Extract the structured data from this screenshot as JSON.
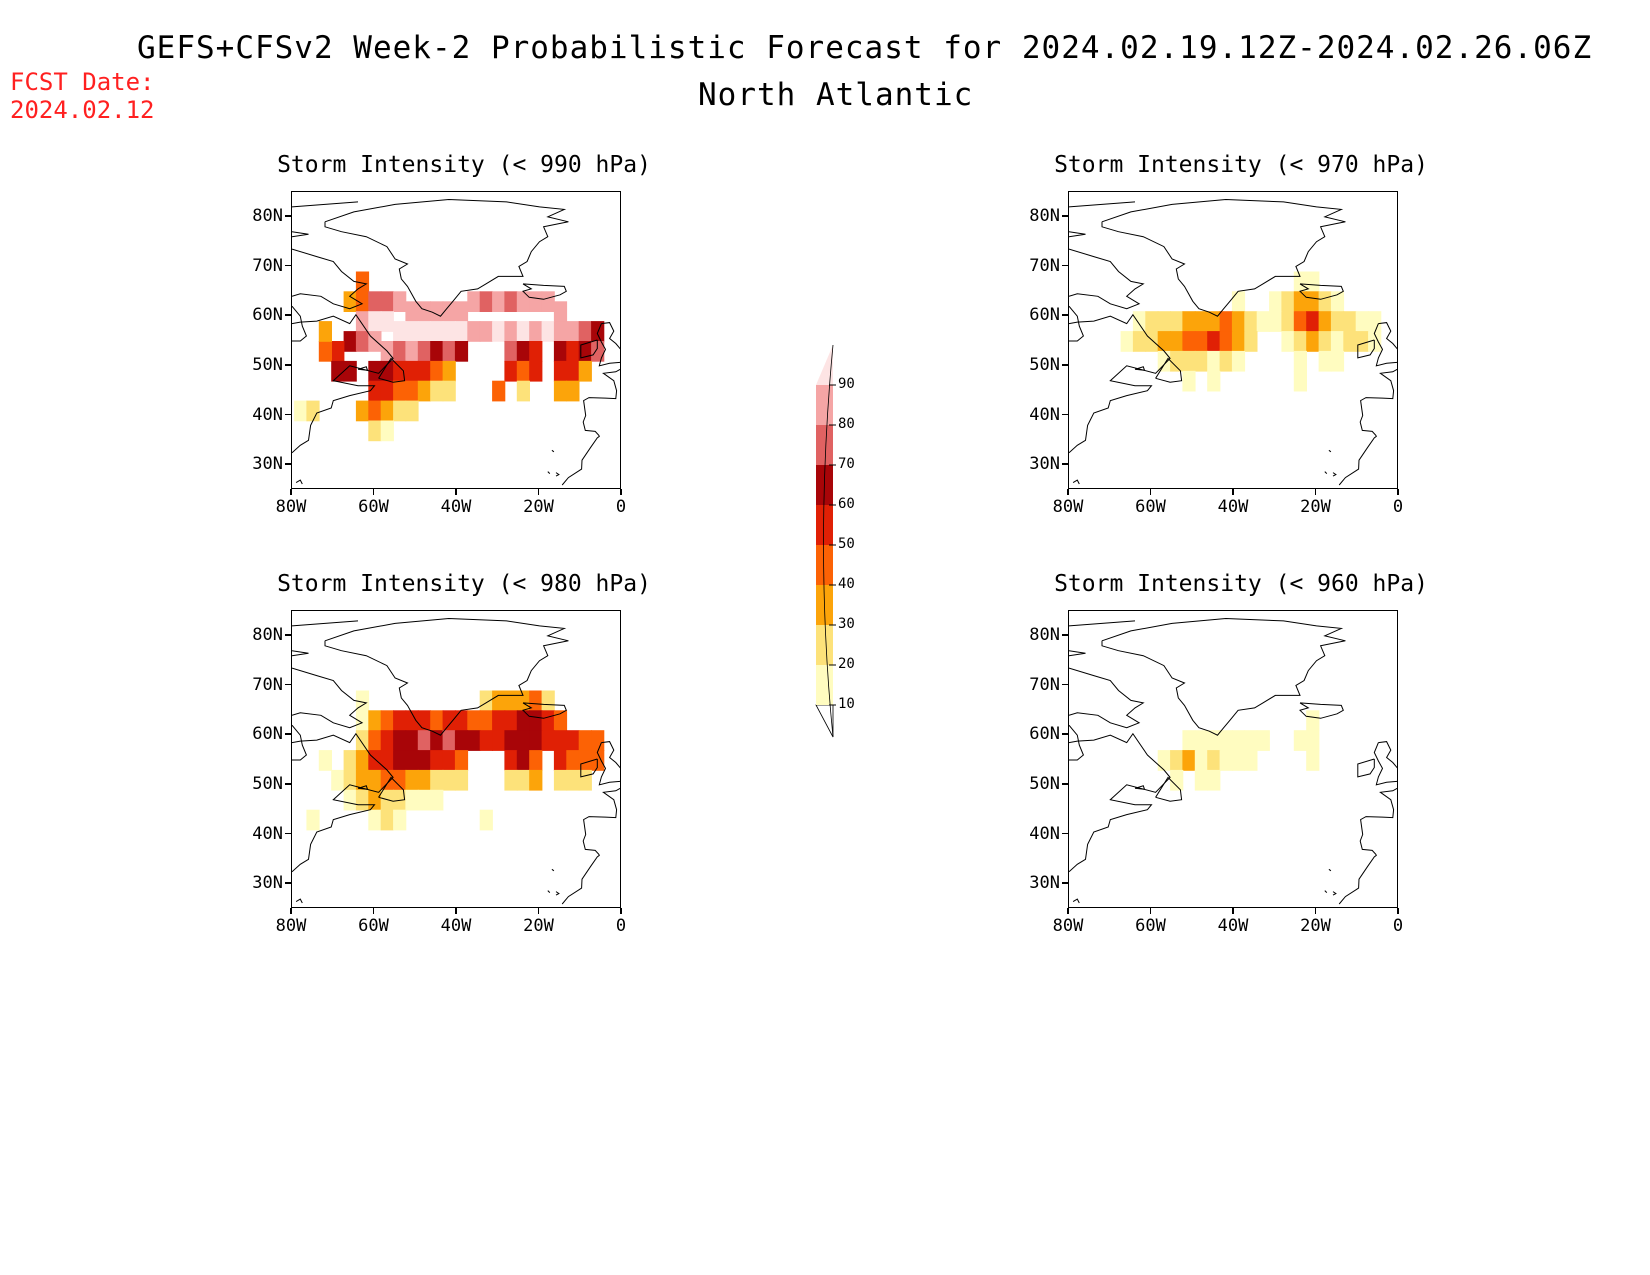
{
  "header": {
    "title": "GEFS+CFSv2 Week-2 Probabilistic Forecast for 2024.02.19.12Z-2024.02.26.06Z",
    "region": "North Atlantic",
    "fcst_label": "FCST Date:",
    "fcst_date": "2024.02.12"
  },
  "axes": {
    "lat_labels": [
      "80N",
      "70N",
      "60N",
      "50N",
      "40N",
      "30N"
    ],
    "lon_labels": [
      "80W",
      "60W",
      "40W",
      "20W",
      "0"
    ]
  },
  "colorbar": {
    "levels": [
      "10",
      "20",
      "30",
      "40",
      "50",
      "60",
      "70",
      "80",
      "90"
    ],
    "colors": [
      "#fffcc0",
      "#fde27a",
      "#fca40a",
      "#fc6205",
      "#e02005",
      "#a80508",
      "#e06262",
      "#f5a5a5",
      "#fde4e4"
    ]
  },
  "panels": [
    {
      "id": "p990",
      "title": "Storm Intensity (< 990 hPa)",
      "cells": [
        [
          -63,
          67,
          4
        ],
        [
          -66,
          63,
          3
        ],
        [
          -63,
          63,
          4
        ],
        [
          -60,
          63,
          7
        ],
        [
          -57,
          63,
          7
        ],
        [
          -54,
          63,
          8
        ],
        [
          -51,
          61,
          8
        ],
        [
          -48,
          61,
          8
        ],
        [
          -45,
          61,
          8
        ],
        [
          -42,
          61,
          8
        ],
        [
          -39,
          61,
          8
        ],
        [
          -36,
          63,
          8
        ],
        [
          -33,
          63,
          7
        ],
        [
          -30,
          63,
          8
        ],
        [
          -27,
          63,
          7
        ],
        [
          -24,
          63,
          8
        ],
        [
          -21,
          63,
          8
        ],
        [
          -18,
          63,
          8
        ],
        [
          -15,
          61,
          8
        ],
        [
          -63,
          59,
          8
        ],
        [
          -60,
          59,
          9
        ],
        [
          -57,
          59,
          9
        ],
        [
          -54,
          57,
          9
        ],
        [
          -51,
          57,
          9
        ],
        [
          -48,
          57,
          9
        ],
        [
          -45,
          57,
          9
        ],
        [
          -42,
          57,
          9
        ],
        [
          -39,
          57,
          9
        ],
        [
          -36,
          57,
          8
        ],
        [
          -33,
          57,
          8
        ],
        [
          -30,
          57,
          9
        ],
        [
          -27,
          57,
          8
        ],
        [
          -24,
          57,
          9
        ],
        [
          -21,
          57,
          8
        ],
        [
          -18,
          57,
          9
        ],
        [
          -15,
          57,
          8
        ],
        [
          -12,
          57,
          8
        ],
        [
          -9,
          57,
          7
        ],
        [
          -6,
          57,
          6
        ],
        [
          -66,
          55,
          6
        ],
        [
          -63,
          55,
          7
        ],
        [
          -60,
          55,
          8
        ],
        [
          -57,
          53,
          8
        ],
        [
          -54,
          53,
          7
        ],
        [
          -51,
          53,
          8
        ],
        [
          -48,
          53,
          7
        ],
        [
          -45,
          53,
          6
        ],
        [
          -42,
          53,
          7
        ],
        [
          -39,
          53,
          6
        ],
        [
          -27,
          53,
          7
        ],
        [
          -24,
          53,
          6
        ],
        [
          -21,
          53,
          5
        ],
        [
          -15,
          53,
          6
        ],
        [
          -12,
          53,
          5
        ],
        [
          -9,
          53,
          6
        ],
        [
          -6,
          53,
          7
        ],
        [
          -69,
          53,
          5
        ],
        [
          -72,
          53,
          4
        ],
        [
          -72,
          57,
          3
        ],
        [
          -69,
          49,
          6
        ],
        [
          -66,
          49,
          6
        ],
        [
          -60,
          49,
          6
        ],
        [
          -57,
          49,
          6
        ],
        [
          -54,
          49,
          5
        ],
        [
          -51,
          49,
          5
        ],
        [
          -48,
          49,
          5
        ],
        [
          -45,
          49,
          4
        ],
        [
          -42,
          49,
          3
        ],
        [
          -27,
          49,
          5
        ],
        [
          -24,
          49,
          4
        ],
        [
          -21,
          49,
          5
        ],
        [
          -15,
          49,
          5
        ],
        [
          -12,
          49,
          5
        ],
        [
          -9,
          49,
          3
        ],
        [
          -60,
          45,
          5
        ],
        [
          -57,
          45,
          5
        ],
        [
          -54,
          45,
          4
        ],
        [
          -51,
          45,
          4
        ],
        [
          -48,
          45,
          3
        ],
        [
          -45,
          45,
          2
        ],
        [
          -42,
          45,
          2
        ],
        [
          -30,
          45,
          4
        ],
        [
          -24,
          45,
          2
        ],
        [
          -15,
          45,
          3
        ],
        [
          -12,
          45,
          3
        ],
        [
          -63,
          41,
          3
        ],
        [
          -60,
          41,
          4
        ],
        [
          -57,
          41,
          3
        ],
        [
          -54,
          41,
          2
        ],
        [
          -51,
          41,
          2
        ],
        [
          -78,
          41,
          1
        ],
        [
          -75,
          41,
          2
        ],
        [
          -60,
          37,
          2
        ],
        [
          -57,
          37,
          1
        ]
      ]
    },
    {
      "id": "p970",
      "title": "Storm Intensity (< 970 hPa)",
      "cells": [
        [
          -24,
          67,
          1
        ],
        [
          -21,
          67,
          1
        ],
        [
          -39,
          63,
          1
        ],
        [
          -30,
          63,
          1
        ],
        [
          -27,
          63,
          2
        ],
        [
          -24,
          63,
          3
        ],
        [
          -21,
          63,
          3
        ],
        [
          -18,
          63,
          2
        ],
        [
          -15,
          63,
          1
        ],
        [
          -63,
          59,
          1
        ],
        [
          -60,
          59,
          2
        ],
        [
          -57,
          59,
          2
        ],
        [
          -54,
          59,
          2
        ],
        [
          -51,
          59,
          3
        ],
        [
          -48,
          59,
          3
        ],
        [
          -45,
          59,
          3
        ],
        [
          -42,
          59,
          4
        ],
        [
          -39,
          59,
          3
        ],
        [
          -36,
          59,
          2
        ],
        [
          -33,
          59,
          1
        ],
        [
          -30,
          59,
          1
        ],
        [
          -27,
          59,
          2
        ],
        [
          -24,
          59,
          4
        ],
        [
          -21,
          59,
          5
        ],
        [
          -18,
          59,
          3
        ],
        [
          -15,
          59,
          2
        ],
        [
          -12,
          59,
          2
        ],
        [
          -9,
          59,
          1
        ],
        [
          -6,
          59,
          1
        ],
        [
          -66,
          55,
          1
        ],
        [
          -63,
          55,
          2
        ],
        [
          -60,
          55,
          2
        ],
        [
          -57,
          55,
          3
        ],
        [
          -54,
          55,
          3
        ],
        [
          -51,
          55,
          4
        ],
        [
          -48,
          55,
          4
        ],
        [
          -45,
          55,
          5
        ],
        [
          -42,
          55,
          4
        ],
        [
          -39,
          55,
          3
        ],
        [
          -36,
          55,
          2
        ],
        [
          -27,
          55,
          1
        ],
        [
          -24,
          55,
          2
        ],
        [
          -21,
          55,
          3
        ],
        [
          -18,
          55,
          2
        ],
        [
          -15,
          55,
          1
        ],
        [
          -12,
          55,
          2
        ],
        [
          -9,
          55,
          2
        ],
        [
          -6,
          55,
          1
        ],
        [
          -57,
          51,
          1
        ],
        [
          -54,
          51,
          2
        ],
        [
          -51,
          51,
          2
        ],
        [
          -48,
          51,
          2
        ],
        [
          -45,
          51,
          1
        ],
        [
          -42,
          51,
          2
        ],
        [
          -39,
          51,
          1
        ],
        [
          -24,
          51,
          1
        ],
        [
          -18,
          51,
          1
        ],
        [
          -15,
          51,
          1
        ],
        [
          -51,
          47,
          1
        ],
        [
          -45,
          47,
          1
        ],
        [
          -24,
          47,
          1
        ]
      ]
    },
    {
      "id": "p980",
      "title": "Storm Intensity (< 980 hPa)",
      "cells": [
        [
          -63,
          67,
          1
        ],
        [
          -33,
          67,
          2
        ],
        [
          -30,
          67,
          3
        ],
        [
          -27,
          67,
          3
        ],
        [
          -24,
          67,
          3
        ],
        [
          -21,
          67,
          4
        ],
        [
          -18,
          67,
          2
        ],
        [
          -63,
          63,
          1
        ],
        [
          -60,
          63,
          3
        ],
        [
          -57,
          63,
          4
        ],
        [
          -54,
          63,
          5
        ],
        [
          -51,
          63,
          5
        ],
        [
          -48,
          63,
          5
        ],
        [
          -45,
          63,
          4
        ],
        [
          -42,
          63,
          5
        ],
        [
          -39,
          63,
          5
        ],
        [
          -36,
          63,
          4
        ],
        [
          -33,
          63,
          4
        ],
        [
          -30,
          63,
          5
        ],
        [
          -27,
          63,
          5
        ],
        [
          -24,
          63,
          6
        ],
        [
          -21,
          63,
          6
        ],
        [
          -18,
          63,
          5
        ],
        [
          -15,
          63,
          4
        ],
        [
          -63,
          59,
          2
        ],
        [
          -60,
          59,
          4
        ],
        [
          -57,
          59,
          5
        ],
        [
          -54,
          59,
          6
        ],
        [
          -51,
          59,
          6
        ],
        [
          -48,
          59,
          7
        ],
        [
          -45,
          59,
          6
        ],
        [
          -42,
          59,
          7
        ],
        [
          -39,
          59,
          6
        ],
        [
          -36,
          59,
          6
        ],
        [
          -33,
          59,
          5
        ],
        [
          -30,
          59,
          5
        ],
        [
          -27,
          59,
          6
        ],
        [
          -24,
          59,
          6
        ],
        [
          -21,
          59,
          6
        ],
        [
          -18,
          59,
          5
        ],
        [
          -15,
          59,
          5
        ],
        [
          -12,
          59,
          5
        ],
        [
          -9,
          59,
          4
        ],
        [
          -6,
          59,
          4
        ],
        [
          -66,
          55,
          2
        ],
        [
          -63,
          55,
          3
        ],
        [
          -60,
          55,
          5
        ],
        [
          -57,
          55,
          5
        ],
        [
          -54,
          55,
          6
        ],
        [
          -51,
          55,
          6
        ],
        [
          -48,
          55,
          6
        ],
        [
          -45,
          55,
          5
        ],
        [
          -42,
          55,
          5
        ],
        [
          -39,
          55,
          4
        ],
        [
          -27,
          55,
          5
        ],
        [
          -24,
          55,
          6
        ],
        [
          -21,
          55,
          4
        ],
        [
          -15,
          55,
          5
        ],
        [
          -12,
          55,
          4
        ],
        [
          -9,
          55,
          4
        ],
        [
          -6,
          55,
          4
        ],
        [
          -72,
          55,
          1
        ],
        [
          -69,
          51,
          1
        ],
        [
          -66,
          51,
          2
        ],
        [
          -63,
          51,
          3
        ],
        [
          -60,
          51,
          3
        ],
        [
          -57,
          51,
          4
        ],
        [
          -54,
          51,
          4
        ],
        [
          -51,
          51,
          3
        ],
        [
          -48,
          51,
          3
        ],
        [
          -45,
          51,
          2
        ],
        [
          -42,
          51,
          2
        ],
        [
          -39,
          51,
          2
        ],
        [
          -27,
          51,
          2
        ],
        [
          -24,
          51,
          2
        ],
        [
          -21,
          51,
          3
        ],
        [
          -15,
          51,
          2
        ],
        [
          -12,
          51,
          2
        ],
        [
          -9,
          51,
          2
        ],
        [
          -66,
          47,
          1
        ],
        [
          -63,
          47,
          2
        ],
        [
          -60,
          47,
          3
        ],
        [
          -57,
          47,
          2
        ],
        [
          -54,
          47,
          2
        ],
        [
          -51,
          47,
          1
        ],
        [
          -48,
          47,
          1
        ],
        [
          -45,
          47,
          1
        ],
        [
          -60,
          43,
          1
        ],
        [
          -57,
          43,
          2
        ],
        [
          -54,
          43,
          1
        ],
        [
          -75,
          43,
          1
        ],
        [
          -33,
          43,
          1
        ]
      ]
    },
    {
      "id": "p960",
      "title": "Storm Intensity (< 960 hPa)",
      "cells": [
        [
          -21,
          63,
          1
        ],
        [
          -51,
          59,
          1
        ],
        [
          -48,
          59,
          1
        ],
        [
          -45,
          59,
          1
        ],
        [
          -42,
          59,
          1
        ],
        [
          -39,
          59,
          1
        ],
        [
          -36,
          59,
          1
        ],
        [
          -33,
          59,
          1
        ],
        [
          -24,
          59,
          1
        ],
        [
          -21,
          59,
          1
        ],
        [
          -57,
          55,
          1
        ],
        [
          -54,
          55,
          2
        ],
        [
          -51,
          55,
          3
        ],
        [
          -48,
          55,
          1
        ],
        [
          -45,
          55,
          2
        ],
        [
          -42,
          55,
          1
        ],
        [
          -39,
          55,
          1
        ],
        [
          -36,
          55,
          1
        ],
        [
          -21,
          55,
          1
        ],
        [
          -54,
          51,
          1
        ],
        [
          -48,
          51,
          1
        ],
        [
          -45,
          51,
          1
        ]
      ]
    }
  ]
}
